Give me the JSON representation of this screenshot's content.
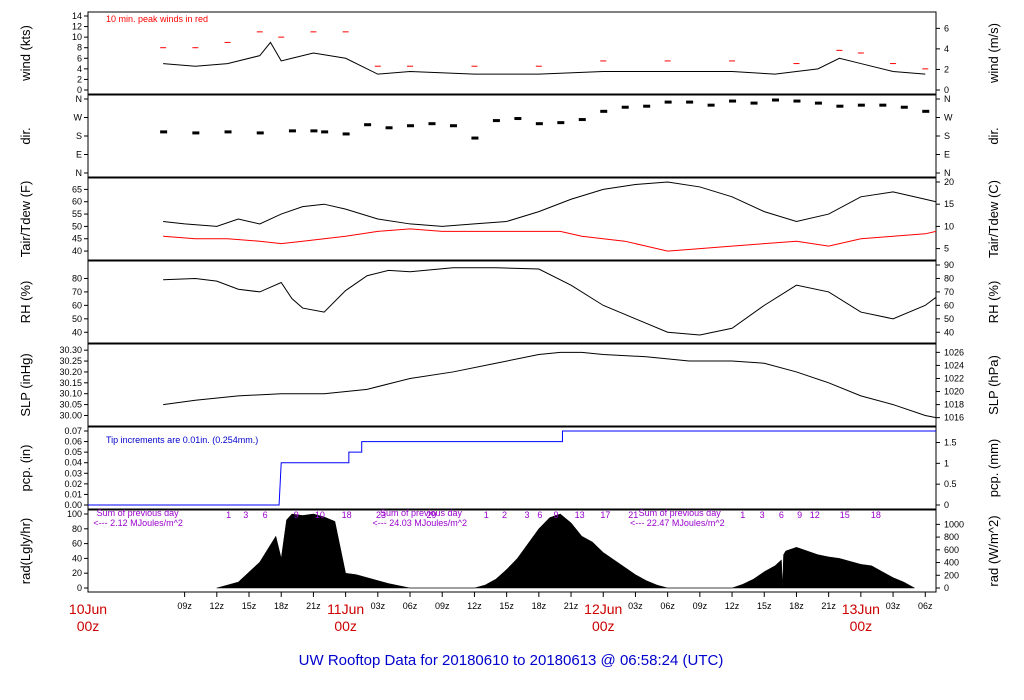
{
  "chart_data": {
    "type": "line",
    "title": "UW Rooftop Data for 20180610  to  20180613 @ 06:58:24  (UTC)",
    "time_axis": {
      "hour_ticks": [
        "09z",
        "12z",
        "15z",
        "18z",
        "21z",
        "11Jun",
        "03z",
        "06z",
        "09z",
        "12z",
        "15z",
        "18z",
        "21z",
        "12Jun",
        "03z",
        "06z",
        "09z",
        "12z",
        "15z",
        "18z",
        "21z",
        "13Jun",
        "03z",
        "06z"
      ],
      "day_labels": [
        {
          "day": "10Jun",
          "hour": "00z"
        },
        {
          "day": "11Jun",
          "hour": "00z"
        },
        {
          "day": "12Jun",
          "hour": "00z"
        },
        {
          "day": "13Jun",
          "hour": "00z"
        }
      ],
      "hours_start": 0,
      "hours_end": 79
    },
    "panels": [
      {
        "id": "wind",
        "ylabel_left": "wind (kts)",
        "ylabel_right": "wind (m/s)",
        "left_ticks": [
          "0",
          "2",
          "4",
          "6",
          "8",
          "10",
          "12",
          "14"
        ],
        "ylim": [
          0,
          14
        ],
        "right_ticks": [
          {
            "v": 0,
            "label": "0"
          },
          {
            "v": 3.89,
            "label": "2"
          },
          {
            "v": 7.78,
            "label": "4"
          },
          {
            "v": 11.66,
            "label": "6"
          }
        ],
        "annotation": "10 min. peak winds in red",
        "series": [
          {
            "name": "wind",
            "color": "#000000",
            "x": [
              7,
              10,
              13,
              16,
              17,
              18,
              19,
              21,
              24,
              27,
              30,
              36,
              42,
              48,
              54,
              60,
              64,
              66,
              68,
              70,
              72,
              75,
              78
            ],
            "y": [
              5,
              4.5,
              5,
              6.5,
              9,
              5.5,
              6,
              7,
              6,
              3,
              3.5,
              3,
              3,
              3.5,
              3.5,
              3.5,
              3,
              3.5,
              4,
              6,
              5,
              3.5,
              3
            ]
          },
          {
            "name": "peak",
            "color": "#ff0000",
            "x": [
              7,
              10,
              13,
              16,
              18,
              21,
              24,
              27,
              30,
              36,
              42,
              48,
              54,
              60,
              66,
              70,
              72,
              75,
              78
            ],
            "y": [
              8,
              8,
              9,
              11,
              10,
              11,
              11,
              4.5,
              4.5,
              4.5,
              4.5,
              5.5,
              5.5,
              5.5,
              5,
              7.5,
              7,
              5,
              4
            ]
          }
        ]
      },
      {
        "id": "dir",
        "ylabel_left": "dir.",
        "ylabel_right": "dir.",
        "left_ticks": [
          "N",
          "E",
          "S",
          "W",
          "N"
        ],
        "ylim": [
          0,
          360
        ],
        "series": [
          {
            "name": "dir",
            "color": "#000000",
            "x": [
              7,
              10,
              13,
              16,
              19,
              21,
              22,
              24,
              26,
              28,
              30,
              32,
              34,
              36,
              38,
              40,
              42,
              44,
              46,
              48,
              50,
              52,
              54,
              56,
              58,
              60,
              62,
              64,
              66,
              68,
              70,
              72,
              74,
              76,
              78
            ],
            "y": [
              200,
              195,
              200,
              195,
              205,
              205,
              200,
              190,
              235,
              220,
              230,
              240,
              230,
              170,
              255,
              265,
              240,
              245,
              260,
              300,
              320,
              325,
              345,
              345,
              330,
              350,
              340,
              355,
              350,
              340,
              325,
              330,
              330,
              320,
              300
            ]
          }
        ]
      },
      {
        "id": "temp",
        "ylabel_left": "Tair/Tdew (F)",
        "ylabel_right": "Tair/Tdew (C)",
        "left_ticks": [
          "40",
          "45",
          "50",
          "55",
          "60",
          "65"
        ],
        "ylim": [
          38,
          68
        ],
        "right_ticks": [
          {
            "v": 41,
            "label": "5"
          },
          {
            "v": 50,
            "label": "10"
          },
          {
            "v": 59,
            "label": "15"
          },
          {
            "v": 68,
            "label": "20"
          }
        ],
        "series": [
          {
            "name": "Tair",
            "color": "#000000",
            "x": [
              7,
              9,
              12,
              14,
              16,
              18,
              20,
              22,
              24,
              27,
              30,
              33,
              36,
              39,
              42,
              45,
              48,
              51,
              54,
              57,
              60,
              63,
              66,
              69,
              72,
              75,
              78,
              79
            ],
            "y": [
              52,
              51,
              50,
              53,
              51,
              55,
              58,
              59,
              57,
              53,
              51,
              50,
              51,
              52,
              56,
              61,
              65,
              67,
              68,
              66,
              62,
              56,
              52,
              55,
              62,
              64,
              61,
              60
            ]
          },
          {
            "name": "Tdew",
            "color": "#ff0000",
            "x": [
              7,
              10,
              13,
              16,
              18,
              20,
              22,
              24,
              27,
              30,
              33,
              36,
              40,
              44,
              46,
              48,
              50,
              52,
              54,
              57,
              60,
              63,
              66,
              69,
              72,
              75,
              78,
              79
            ],
            "y": [
              46,
              45,
              45,
              44,
              43,
              44,
              45,
              46,
              48,
              49,
              48,
              48,
              48,
              48,
              46,
              45,
              44,
              42,
              40,
              41,
              42,
              43,
              44,
              42,
              45,
              46,
              47,
              48
            ]
          }
        ]
      },
      {
        "id": "rh",
        "ylabel_left": "RH (%)",
        "ylabel_right": "RH (%)",
        "left_ticks": [
          "40",
          "50",
          "60",
          "70",
          "80"
        ],
        "ylim": [
          35,
          90
        ],
        "right_ticks": [
          {
            "v": 40,
            "label": "40"
          },
          {
            "v": 50,
            "label": "50"
          },
          {
            "v": 60,
            "label": "60"
          },
          {
            "v": 70,
            "label": "70"
          },
          {
            "v": 80,
            "label": "80"
          },
          {
            "v": 90,
            "label": "90"
          }
        ],
        "series": [
          {
            "name": "RH",
            "color": "#000000",
            "x": [
              7,
              10,
              12,
              14,
              16,
              18,
              19,
              20,
              22,
              24,
              26,
              28,
              30,
              34,
              38,
              42,
              45,
              48,
              51,
              54,
              57,
              60,
              63,
              66,
              69,
              72,
              75,
              78,
              79
            ],
            "y": [
              79,
              80,
              78,
              72,
              70,
              77,
              65,
              58,
              55,
              71,
              82,
              86,
              85,
              88,
              88,
              87,
              75,
              60,
              50,
              40,
              38,
              43,
              60,
              75,
              70,
              55,
              50,
              60,
              66
            ]
          }
        ]
      },
      {
        "id": "slp",
        "ylabel_left": "SLP (inHg)",
        "ylabel_right": "SLP (hPa)",
        "left_ticks": [
          "30.00",
          "30.05",
          "30.10",
          "30.15",
          "30.20",
          "30.25",
          "30.30"
        ],
        "ylim": [
          29.97,
          30.31
        ],
        "right_ticks": [
          {
            "v": 29.99,
            "label": "1016"
          },
          {
            "v": 30.05,
            "label": "1018"
          },
          {
            "v": 30.11,
            "label": "1020"
          },
          {
            "v": 30.17,
            "label": "1022"
          },
          {
            "v": 30.23,
            "label": "1024"
          },
          {
            "v": 30.29,
            "label": "1026"
          }
        ],
        "series": [
          {
            "name": "SLP",
            "color": "#000000",
            "x": [
              7,
              10,
              14,
              18,
              22,
              26,
              30,
              34,
              38,
              42,
              44,
              46,
              48,
              52,
              56,
              60,
              63,
              66,
              69,
              72,
              75,
              78,
              79
            ],
            "y": [
              30.05,
              30.07,
              30.09,
              30.1,
              30.1,
              30.12,
              30.17,
              30.2,
              30.24,
              30.28,
              30.29,
              30.29,
              30.28,
              30.27,
              30.25,
              30.25,
              30.24,
              30.2,
              30.15,
              30.09,
              30.05,
              30.0,
              29.99
            ]
          }
        ]
      },
      {
        "id": "pcp",
        "ylabel_left": "pcp. (in)",
        "ylabel_right": "pcp. (mm)",
        "left_ticks": [
          "0.00",
          "0.01",
          "0.02",
          "0.03",
          "0.04",
          "0.05",
          "0.06",
          "0.07"
        ],
        "ylim": [
          0,
          0.07
        ],
        "right_ticks": [
          {
            "v": 0,
            "label": "0"
          },
          {
            "v": 0.0197,
            "label": "0.5"
          },
          {
            "v": 0.0394,
            "label": "1"
          },
          {
            "v": 0.0591,
            "label": "1.5"
          }
        ],
        "annotation": "Tip increments are 0.01in. (0.254mm.)",
        "series": [
          {
            "name": "pcp",
            "color": "#0000ff",
            "x": [
              0,
              17.8,
              17.9,
              18.0,
              24.3,
              24.3,
              25.5,
              25.5,
              44.2,
              44.2,
              79
            ],
            "y": [
              0,
              0,
              0.02,
              0.04,
              0.04,
              0.05,
              0.05,
              0.06,
              0.06,
              0.07,
              0.07
            ]
          }
        ]
      },
      {
        "id": "rad",
        "ylabel_left": "rad(Lgly/hr)",
        "ylabel_right": "rad (W/m^2)",
        "left_ticks": [
          "0",
          "20",
          "40",
          "60",
          "80",
          "100"
        ],
        "ylim": [
          0,
          100
        ],
        "right_ticks": [
          {
            "v": 0,
            "label": "0"
          },
          {
            "v": 17.2,
            "label": "200"
          },
          {
            "v": 34.4,
            "label": "400"
          },
          {
            "v": 51.6,
            "label": "600"
          },
          {
            "v": 68.8,
            "label": "800"
          },
          {
            "v": 86,
            "label": "1000"
          }
        ],
        "annotations": [
          {
            "text": "Sum of previous day",
            "hour": 0.8,
            "row": 0
          },
          {
            "text": "<--- 2.12 MJoules/m^2",
            "hour": 0.5,
            "row": 1
          },
          {
            "text": "Sum of previous day",
            "hour": 27.2,
            "row": 0
          },
          {
            "text": "<--- 24.03 MJoules/m^2",
            "hour": 26.5,
            "row": 1
          },
          {
            "text": "Sum of previous day",
            "hour": 51.3,
            "row": 0
          },
          {
            "text": "<--- 22.47 MJoules/m^2",
            "hour": 50.5,
            "row": 1
          }
        ],
        "top_labels": [
          {
            "t": "1",
            "h": 13.1
          },
          {
            "t": "3",
            "h": 14.7
          },
          {
            "t": "6",
            "h": 16.5
          },
          {
            "t": "9",
            "h": 19.4
          },
          {
            "t": "10",
            "h": 21.6
          },
          {
            "t": "18",
            "h": 24.1
          },
          {
            "t": "23",
            "h": 27.3
          },
          {
            "t": "29",
            "h": 32.0
          },
          {
            "t": "1",
            "h": 37.1
          },
          {
            "t": "2",
            "h": 38.8
          },
          {
            "t": "3",
            "h": 40.9
          },
          {
            "t": "6",
            "h": 42.1
          },
          {
            "t": "9",
            "h": 43.6
          },
          {
            "t": "13",
            "h": 45.8
          },
          {
            "t": "17",
            "h": 48.2
          },
          {
            "t": "21",
            "h": 50.8
          },
          {
            "t": "1",
            "h": 61.0
          },
          {
            "t": "3",
            "h": 62.8
          },
          {
            "t": "6",
            "h": 64.6
          },
          {
            "t": "9",
            "h": 66.3
          },
          {
            "t": "12",
            "h": 67.7
          },
          {
            "t": "15",
            "h": 70.5
          },
          {
            "t": "18",
            "h": 73.4
          }
        ],
        "series": [
          {
            "name": "rad",
            "color": "#000000",
            "x": [
              12,
              14,
              16,
              17.5,
              18,
              18.5,
              19,
              20,
              21,
              22,
              23,
              24,
              25,
              26,
              27,
              28,
              29,
              30,
              36,
              37,
              38,
              39,
              40,
              41,
              42,
              43,
              44,
              45,
              46,
              47,
              48,
              49,
              50,
              51,
              52,
              53,
              54,
              60,
              61,
              62,
              63,
              64,
              64.6,
              64.7,
              64.8,
              65,
              66,
              67,
              68,
              69,
              70,
              71,
              72,
              73,
              74,
              75,
              76,
              77
            ],
            "y": [
              0,
              8,
              35,
              70,
              40,
              92,
              100,
              98,
              100,
              96,
              90,
              20,
              18,
              14,
              10,
              6,
              3,
              0,
              0,
              4,
              12,
              25,
              40,
              60,
              80,
              95,
              100,
              88,
              70,
              62,
              48,
              38,
              28,
              18,
              10,
              4,
              0,
              0,
              5,
              12,
              22,
              30,
              38,
              0,
              45,
              50,
              55,
              50,
              45,
              42,
              40,
              36,
              32,
              30,
              22,
              14,
              8,
              0
            ]
          }
        ]
      }
    ]
  }
}
